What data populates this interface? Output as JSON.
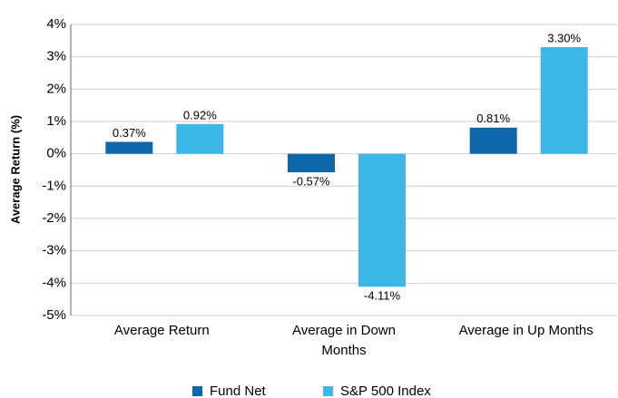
{
  "chart_data": {
    "type": "bar",
    "y_label": "Average Return (%)",
    "categories": [
      "Average Return",
      "Average in Down Months",
      "Average in Up Months"
    ],
    "series": [
      {
        "name": "Fund Net",
        "color": "#0f67ab",
        "values": [
          0.37,
          -0.57,
          0.81
        ],
        "value_labels": [
          "0.37%",
          "-0.57%",
          "0.81%"
        ]
      },
      {
        "name": "S&P 500 Index",
        "color": "#3cb7e8",
        "values": [
          0.92,
          -4.11,
          3.3
        ],
        "value_labels": [
          "0.92%",
          "-4.11%",
          "3.30%"
        ]
      }
    ],
    "ylim": [
      -5,
      4
    ],
    "yticks": [
      {
        "value": -5,
        "label": "-5%"
      },
      {
        "value": -4,
        "label": "-4%"
      },
      {
        "value": -3,
        "label": "-3%"
      },
      {
        "value": -2,
        "label": "-2%"
      },
      {
        "value": -1,
        "label": "-1%"
      },
      {
        "value": 0,
        "label": "0%"
      },
      {
        "value": 1,
        "label": "1%"
      },
      {
        "value": 2,
        "label": "2%"
      },
      {
        "value": 3,
        "label": "3%"
      },
      {
        "value": 4,
        "label": "4%"
      }
    ],
    "grid": true,
    "legend": "bottom"
  }
}
